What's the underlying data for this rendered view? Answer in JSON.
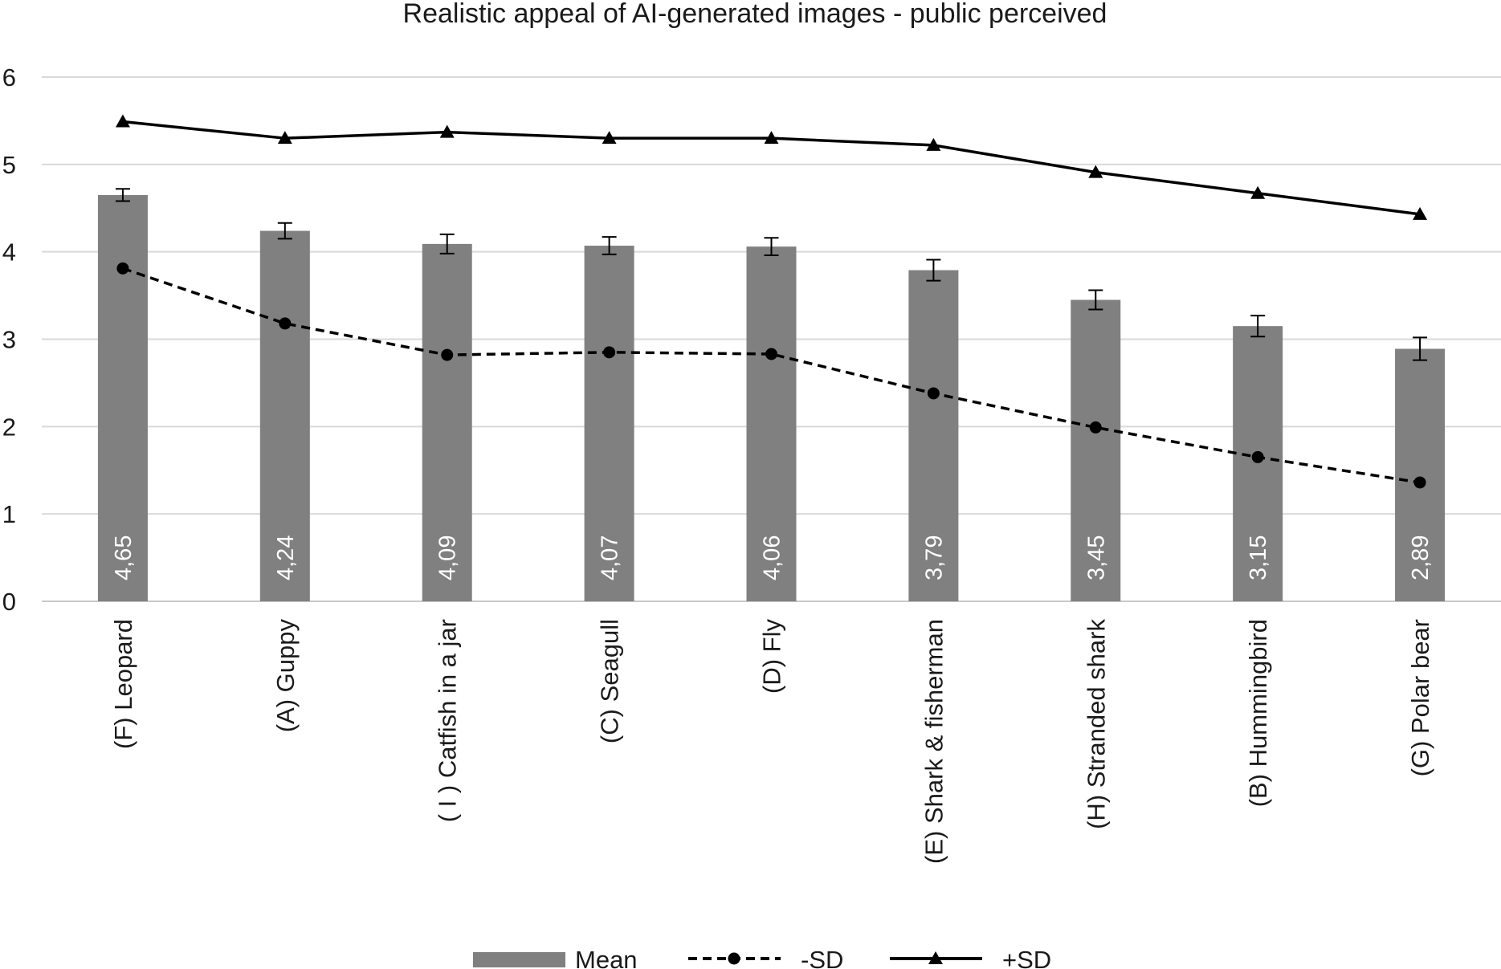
{
  "chart_data": {
    "type": "bar",
    "title": "Realistic appeal of AI-generated images - public perceived",
    "xlabel": "",
    "ylabel": "",
    "ylim": [
      0,
      6
    ],
    "yticks": [
      "0",
      "1",
      "2",
      "3",
      "4",
      "5",
      "6"
    ],
    "grid": true,
    "legend_position": "bottom",
    "categories": [
      "(F) Leopard",
      "(A) Guppy",
      "( I ) Catfish in a jar",
      "(C) Seagull",
      "(D) Fly",
      "(E) Shark & fisherman",
      "(H) Stranded shark",
      "(B) Hummingbird",
      "(G) Polar bear"
    ],
    "series": [
      {
        "name": "Mean",
        "kind": "bar",
        "color": "#808080",
        "values": [
          4.65,
          4.24,
          4.09,
          4.07,
          4.06,
          3.79,
          3.45,
          3.15,
          2.89
        ],
        "data_labels": [
          "4,65",
          "4,24",
          "4,09",
          "4,07",
          "4,06",
          "3,79",
          "3,45",
          "3,15",
          "2,89"
        ],
        "error": [
          0.07,
          0.09,
          0.11,
          0.1,
          0.1,
          0.12,
          0.11,
          0.12,
          0.13
        ]
      },
      {
        "name": "-SD",
        "kind": "line",
        "style": "dashed",
        "marker": "circle",
        "color": "#000000",
        "values": [
          3.81,
          3.18,
          2.82,
          2.85,
          2.83,
          2.38,
          1.99,
          1.65,
          1.36
        ]
      },
      {
        "name": "+SD",
        "kind": "line",
        "style": "solid",
        "marker": "triangle",
        "color": "#000000",
        "values": [
          5.49,
          5.3,
          5.37,
          5.3,
          5.3,
          5.22,
          4.91,
          4.67,
          4.43
        ]
      }
    ]
  }
}
